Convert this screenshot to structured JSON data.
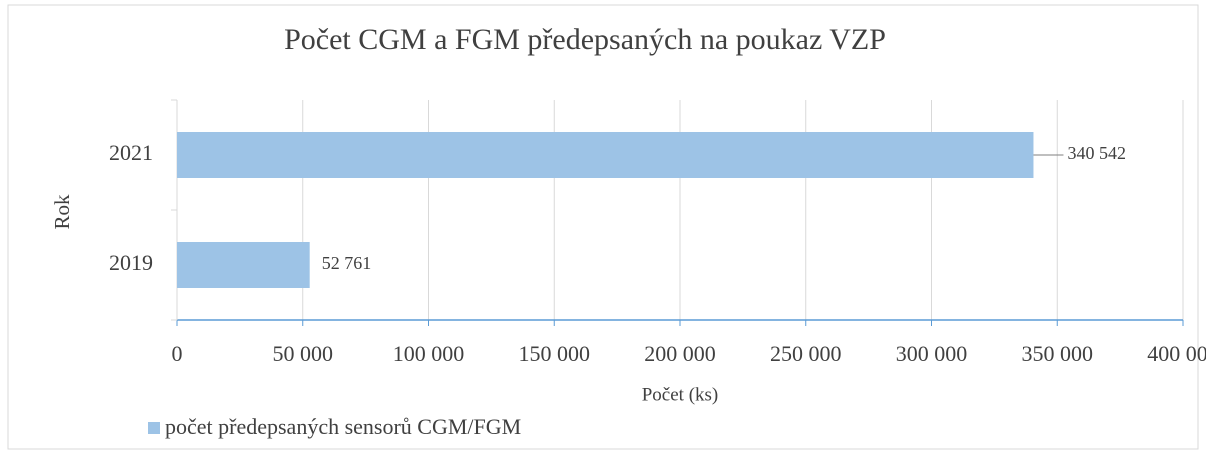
{
  "chart_data": {
    "type": "bar",
    "orientation": "horizontal",
    "title": "Počet CGM a FGM předepsaných na poukaz VZP",
    "x_label": "Počet (ks)",
    "y_label": "Rok",
    "categories": [
      "2019",
      "2021"
    ],
    "series": [
      {
        "name": "počet předepsaných sensorů CGM/FGM",
        "color": "#9dc3e6",
        "values": [
          52761,
          340542
        ],
        "value_labels": [
          "52 761",
          "340 542"
        ]
      }
    ],
    "xlim": [
      0,
      400000
    ],
    "xticks": [
      0,
      {
        "value": 50000,
        "label": "50 000"
      },
      {
        "value": 100000,
        "label": "100 000"
      },
      {
        "value": 150000,
        "label": "150 000"
      },
      {
        "value": 200000,
        "label": "200 000"
      },
      {
        "value": 250000,
        "label": "250 000"
      },
      {
        "value": 300000,
        "label": "300 000"
      },
      {
        "value": 350000,
        "label": "350 000"
      },
      {
        "value": 400000,
        "label": "400 000"
      }
    ],
    "grid": true,
    "legend": "bottom-left"
  }
}
